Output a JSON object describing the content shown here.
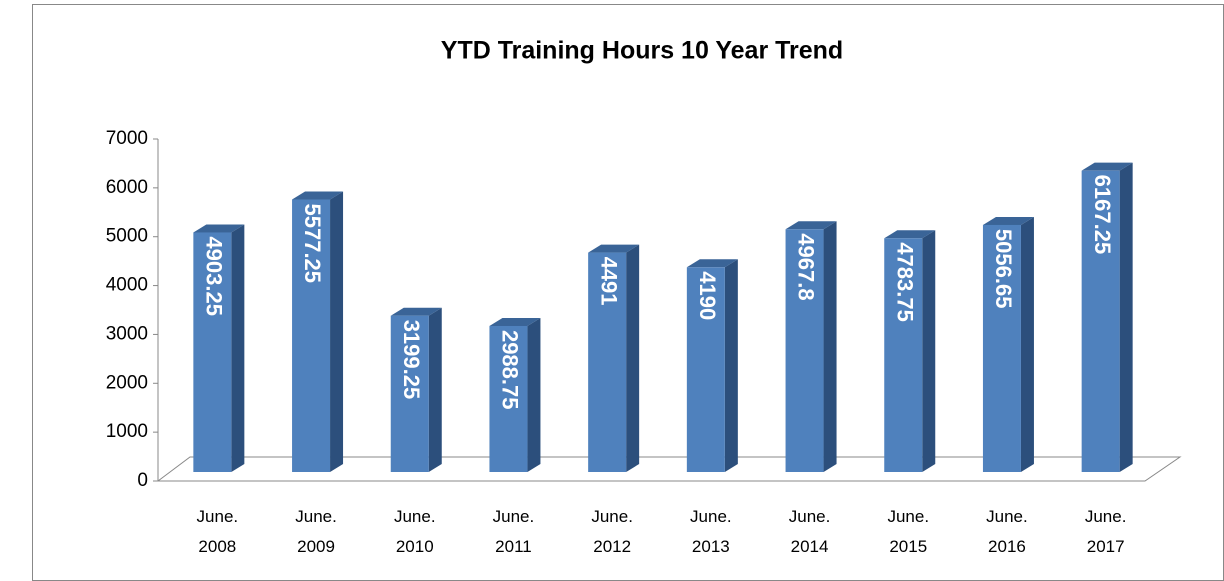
{
  "chart_data": {
    "type": "bar3d",
    "title": "YTD Training Hours 10 Year Trend",
    "categories": [
      "June. 2008",
      "June. 2009",
      "June. 2010",
      "June. 2011",
      "June. 2012",
      "June. 2013",
      "June. 2014",
      "June. 2015",
      "June. 2016",
      "June. 2017"
    ],
    "values": [
      4903.25,
      5577.25,
      3199.25,
      2988.75,
      4491,
      4190,
      4967.8,
      4783.75,
      5056.65,
      6167.25
    ],
    "color": "#4f81bd",
    "ylim": [
      0,
      7000
    ],
    "yticks": [
      0,
      1000,
      2000,
      3000,
      4000,
      5000,
      6000,
      7000
    ]
  }
}
